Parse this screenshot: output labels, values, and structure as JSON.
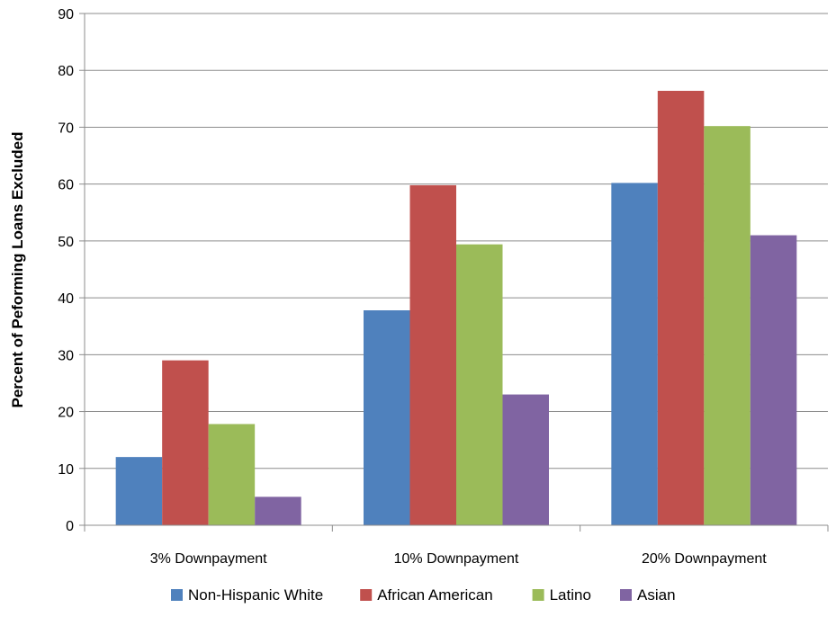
{
  "chart_data": {
    "type": "bar",
    "title": "",
    "xlabel": "",
    "ylabel": "Percent of Peforming Loans Excluded",
    "categories": [
      "3% Downpayment",
      "10% Downpayment",
      "20% Downpayment"
    ],
    "series": [
      {
        "name": "Non-Hispanic White",
        "color": "#4f81bd",
        "values": [
          12,
          37.8,
          60.2
        ]
      },
      {
        "name": "African American",
        "color": "#c0504d",
        "values": [
          29,
          59.8,
          76.4
        ]
      },
      {
        "name": "Latino",
        "color": "#9bbb59",
        "values": [
          17.8,
          49.4,
          70.2
        ]
      },
      {
        "name": "Asian",
        "color": "#8064a2",
        "values": [
          5,
          23,
          51
        ]
      }
    ],
    "ylim": [
      0,
      90
    ],
    "yticks": [
      0,
      10,
      20,
      30,
      40,
      50,
      60,
      70,
      80,
      90
    ],
    "grid": true,
    "legend_position": "bottom"
  }
}
